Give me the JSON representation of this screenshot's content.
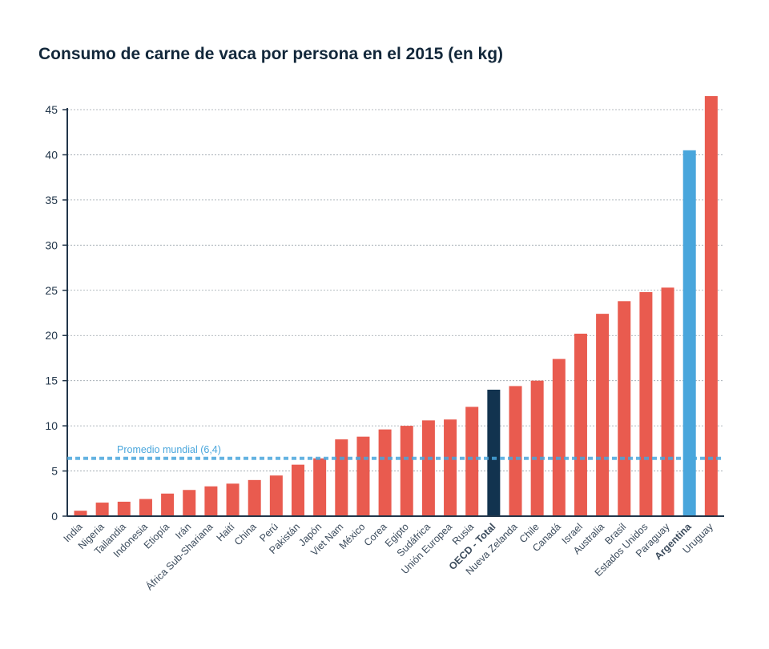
{
  "chart_data": {
    "type": "bar",
    "title": "Consumo de carne de vaca por persona en el 2015 (en kg)",
    "xlabel": "",
    "ylabel": "",
    "ylim": [
      0,
      45
    ],
    "yticks": [
      0,
      5,
      10,
      15,
      20,
      25,
      30,
      35,
      40,
      45
    ],
    "grid": true,
    "categories": [
      "India",
      "Nigeria",
      "Tailandia",
      "Indonesia",
      "Etiopía",
      "Irán",
      "África Sub-Shariana",
      "Haití",
      "China",
      "Perú",
      "Pakistán",
      "Japón",
      "Viet Nam",
      "México",
      "Corea",
      "Egipto",
      "Sudáfrica",
      "Unión Europea",
      "Rusia",
      "OECD - Total",
      "Nueva Zelanda",
      "Chile",
      "Canadá",
      "Israel",
      "Australia",
      "Brasil",
      "Estados Unidos",
      "Paraguay",
      "Argentina",
      "Uruguay"
    ],
    "values": [
      0.6,
      1.5,
      1.6,
      1.9,
      2.5,
      2.9,
      3.3,
      3.6,
      4.0,
      4.5,
      5.7,
      6.4,
      8.5,
      8.8,
      9.6,
      10.0,
      10.6,
      10.7,
      12.1,
      14.0,
      14.4,
      15.0,
      17.4,
      20.2,
      22.4,
      23.8,
      24.8,
      25.3,
      40.5,
      46.5
    ],
    "highlight": {
      "OECD - Total": "#12334f",
      "Argentina": "#49a6dc"
    },
    "bar_color": "#e95b4f",
    "reference_line": {
      "label": "Promedio mundial (6,4)",
      "value": 6.4,
      "color": "#49a6dc"
    }
  }
}
